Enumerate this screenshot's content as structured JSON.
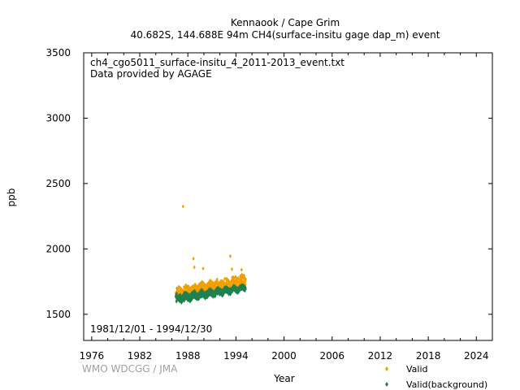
{
  "header": {
    "title_line1": "Kennaook / Cape Grim",
    "title_line2": "40.682S, 144.688E 94m    CH4(surface-insitu gage dap_m) event"
  },
  "annotations": {
    "file_name": "ch4_cgo5011_surface-insitu_4_2011-2013_event.txt",
    "provider": "Data provided by AGAGE",
    "date_range": "1981/12/01 - 1994/12/30"
  },
  "watermark": "WMO WDCGG / JMA",
  "colors": {
    "valid": "#f0a000",
    "background": "#208050"
  },
  "chart_data": {
    "type": "scatter",
    "xlabel": "Year",
    "ylabel": "ppb",
    "xlim": [
      1975,
      2026
    ],
    "ylim": [
      1300,
      3500
    ],
    "xticks": [
      1976,
      1982,
      1988,
      1994,
      2000,
      2006,
      2012,
      2018,
      2024
    ],
    "yticks": [
      1500,
      2000,
      2500,
      3000,
      3500
    ],
    "grid": false,
    "legend_position": "bottom-right",
    "series": [
      {
        "name": "Valid",
        "color": "#f0a000",
        "marker": "diamond",
        "x_range": [
          1986.5,
          1995.2
        ],
        "y_lower": [
          1615,
          1710
        ],
        "y_upper": [
          1700,
          1800
        ],
        "outliers": [
          [
            1987.4,
            2325
          ],
          [
            1993.3,
            1945
          ],
          [
            1988.7,
            1925
          ],
          [
            1988.8,
            1860
          ],
          [
            1989.9,
            1850
          ],
          [
            1993.5,
            1845
          ],
          [
            1994.7,
            1840
          ]
        ]
      },
      {
        "name": "Valid(background)",
        "color": "#208050",
        "marker": "diamond",
        "x_range": [
          1986.5,
          1995.2
        ],
        "y_lower": [
          1590,
          1685
        ],
        "y_upper": [
          1650,
          1720
        ]
      }
    ]
  }
}
